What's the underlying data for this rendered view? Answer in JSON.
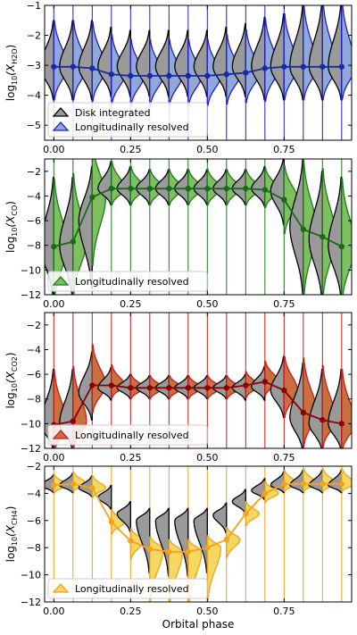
{
  "figure": {
    "xlabel": "Orbital phase",
    "x_tick_labels": [
      "0.00",
      "0.25",
      "0.50",
      "0.75"
    ],
    "x_ticks": [
      0.0,
      0.25,
      0.5,
      0.75
    ],
    "phases": [
      0.0,
      0.0625,
      0.125,
      0.1875,
      0.25,
      0.3125,
      0.375,
      0.4375,
      0.5,
      0.5625,
      0.625,
      0.6875,
      0.75,
      0.8125,
      0.875,
      0.9375
    ],
    "xlim": [
      -0.03,
      0.97
    ]
  },
  "legend_text": {
    "disk": "Disk integrated",
    "long": "Longitudinally resolved"
  },
  "chart_data": [
    {
      "type": "violin",
      "ylabel": "log₁₀(X_H2O)",
      "ylabel_main": "log",
      "ylabel_sub1": "10",
      "ylabel_mid": "(X",
      "ylabel_sub2": "H2O",
      "ylabel_end": ")",
      "ylim": [
        -5.5,
        -1
      ],
      "y_ticks": [
        -5,
        -4,
        -3,
        -2,
        -1
      ],
      "y_tick_labels": [
        "−5",
        "−4",
        "−3",
        "−2",
        "−1"
      ],
      "color": "#1f1fcc",
      "fill": "#8fa8d8",
      "legend": [
        "Disk integrated",
        "Longitudinally resolved"
      ],
      "x": [
        0.0,
        0.0625,
        0.125,
        0.1875,
        0.25,
        0.3125,
        0.375,
        0.4375,
        0.5,
        0.5625,
        0.625,
        0.6875,
        0.75,
        0.8125,
        0.875,
        0.9375
      ],
      "median": [
        -3.05,
        -3.05,
        -3.1,
        -3.3,
        -3.35,
        -3.35,
        -3.35,
        -3.35,
        -3.35,
        -3.3,
        -3.25,
        -3.1,
        -3.05,
        -3.05,
        -3.05,
        -3.05
      ],
      "disk_median": [
        -3.05,
        -3.05,
        -3.05,
        -3.05,
        -3.05,
        -3.05,
        -3.05,
        -3.05,
        -3.05,
        -3.05,
        -3.05,
        -3.05,
        -3.05,
        -3.05,
        -3.05,
        -3.05
      ],
      "spread_lo": [
        1.0,
        1.0,
        1.0,
        0.9,
        0.9,
        0.9,
        0.9,
        0.9,
        0.9,
        0.9,
        0.9,
        1.0,
        1.0,
        1.0,
        1.0,
        1.0
      ],
      "spread_hi": [
        1.4,
        1.4,
        1.4,
        1.2,
        1.1,
        1.1,
        1.1,
        1.1,
        1.1,
        1.2,
        1.3,
        1.5,
        1.6,
        1.9,
        2.0,
        2.0
      ]
    },
    {
      "type": "violin",
      "ylabel": "log₁₀(X_CO)",
      "ylabel_main": "log",
      "ylabel_sub1": "10",
      "ylabel_mid": "(X",
      "ylabel_sub2": "CO",
      "ylabel_end": ")",
      "ylim": [
        -12,
        -1
      ],
      "y_ticks": [
        -12,
        -10,
        -8,
        -6,
        -4,
        -2
      ],
      "y_tick_labels": [
        "−12",
        "−10",
        "−8",
        "−6",
        "−4",
        "−2"
      ],
      "color": "#1a7a1a",
      "fill": "#7fbf5f",
      "legend": [
        "Longitudinally resolved"
      ],
      "x": [
        0.0,
        0.0625,
        0.125,
        0.1875,
        0.25,
        0.3125,
        0.375,
        0.4375,
        0.5,
        0.5625,
        0.625,
        0.6875,
        0.75,
        0.8125,
        0.875,
        0.9375
      ],
      "median": [
        -8.1,
        -7.7,
        -4.1,
        -3.4,
        -3.4,
        -3.4,
        -3.4,
        -3.4,
        -3.4,
        -3.4,
        -3.4,
        -3.5,
        -4.3,
        -6.7,
        -7.3,
        -8.1
      ],
      "disk_median": [
        -8.0,
        -8.0,
        -6.0,
        -3.4,
        -3.4,
        -3.4,
        -3.4,
        -3.4,
        -3.4,
        -3.4,
        -3.4,
        -3.4,
        -3.6,
        -6.5,
        -7.5,
        -8.0
      ],
      "spread_lo": [
        4.0,
        4.0,
        5.0,
        1.2,
        1.2,
        1.2,
        1.2,
        1.2,
        1.2,
        1.2,
        1.2,
        1.3,
        2.5,
        5.0,
        4.5,
        4.0
      ],
      "spread_hi": [
        5.0,
        5.0,
        4.0,
        2.0,
        1.6,
        1.4,
        1.4,
        1.4,
        1.4,
        1.4,
        1.4,
        1.6,
        2.5,
        5.0,
        5.0,
        5.0
      ]
    },
    {
      "type": "violin",
      "ylabel": "log₁₀(X_CO2)",
      "ylabel_main": "log",
      "ylabel_sub1": "10",
      "ylabel_mid": "(X",
      "ylabel_sub2": "CO2",
      "ylabel_end": ")",
      "ylim": [
        -12,
        -1
      ],
      "y_ticks": [
        -12,
        -10,
        -8,
        -6,
        -4,
        -2
      ],
      "y_tick_labels": [
        "−12",
        "−10",
        "−8",
        "−6",
        "−4",
        "−2"
      ],
      "color": "#cc1a1a",
      "fill": "#c87040",
      "legend": [
        "Longitudinally resolved"
      ],
      "x": [
        0.0,
        0.0625,
        0.125,
        0.1875,
        0.25,
        0.3125,
        0.375,
        0.4375,
        0.5,
        0.5625,
        0.625,
        0.6875,
        0.75,
        0.8125,
        0.875,
        0.9375
      ],
      "median": [
        -10.1,
        -9.8,
        -6.9,
        -6.9,
        -7.1,
        -7.1,
        -7.1,
        -7.1,
        -7.1,
        -7.1,
        -6.9,
        -6.6,
        -7.3,
        -9.1,
        -9.7,
        -10.0
      ],
      "disk_median": [
        -10.0,
        -10.0,
        -7.5,
        -7.1,
        -7.1,
        -7.1,
        -7.1,
        -7.1,
        -7.1,
        -7.1,
        -7.1,
        -7.0,
        -7.3,
        -9.5,
        -10.0,
        -10.0
      ],
      "spread_lo": [
        2.0,
        2.0,
        2.0,
        0.9,
        0.8,
        0.8,
        0.8,
        0.8,
        0.8,
        0.8,
        0.9,
        1.0,
        2.0,
        2.5,
        2.0,
        2.0
      ],
      "spread_hi": [
        4.0,
        4.0,
        3.0,
        1.5,
        1.0,
        0.9,
        0.9,
        0.9,
        0.9,
        0.9,
        1.0,
        1.5,
        2.5,
        4.0,
        4.0,
        4.0
      ]
    },
    {
      "type": "violin",
      "ylabel": "log₁₀(X_CH4)",
      "ylabel_main": "log",
      "ylabel_sub1": "10",
      "ylabel_mid": "(X",
      "ylabel_sub2": "CH4",
      "ylabel_end": ")",
      "ylim": [
        -12,
        -2
      ],
      "y_ticks": [
        -12,
        -10,
        -8,
        -6,
        -4,
        -2
      ],
      "y_tick_labels": [
        "−12",
        "−10",
        "−8",
        "−6",
        "−4",
        "−2"
      ],
      "color": "#f0a020",
      "fill": "#f5d860",
      "legend": [
        "Longitudinally resolved"
      ],
      "x": [
        0.0,
        0.0625,
        0.125,
        0.1875,
        0.25,
        0.3125,
        0.375,
        0.4375,
        0.5,
        0.5625,
        0.625,
        0.6875,
        0.75,
        0.8125,
        0.875,
        0.9375
      ],
      "median": [
        -3.4,
        -3.3,
        -3.6,
        -6.1,
        -7.5,
        -8.1,
        -8.3,
        -8.3,
        -8.0,
        -7.4,
        -5.5,
        -4.0,
        -3.3,
        -3.3,
        -3.3,
        -3.3
      ],
      "disk_median": [
        -3.4,
        -3.4,
        -3.6,
        -4.3,
        -5.5,
        -6.0,
        -6.0,
        -6.0,
        -6.0,
        -5.6,
        -4.6,
        -3.8,
        -3.4,
        -3.4,
        -3.4,
        -3.4
      ],
      "spread_lo": [
        0.5,
        0.5,
        0.6,
        0.8,
        1.2,
        3.5,
        3.7,
        3.7,
        3.5,
        1.2,
        0.8,
        0.6,
        0.5,
        0.5,
        0.5,
        0.5
      ],
      "spread_hi": [
        0.7,
        0.8,
        0.8,
        0.8,
        0.8,
        0.8,
        0.8,
        0.8,
        0.8,
        0.8,
        0.8,
        0.8,
        0.9,
        1.0,
        1.0,
        1.0
      ]
    }
  ]
}
